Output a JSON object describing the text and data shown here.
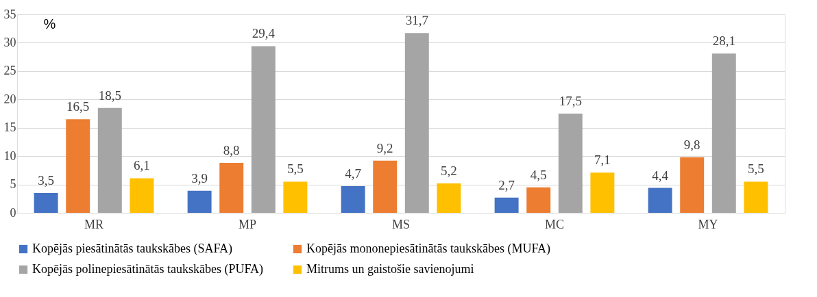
{
  "chart_data": {
    "type": "bar",
    "ylabel": "%",
    "categories": [
      "MR",
      "MP",
      "MS",
      "MC",
      "MY"
    ],
    "series": [
      {
        "name": "Kopējās piesātinātās taukskābes (SAFA)",
        "color": "#4472c4",
        "values": [
          3.5,
          3.9,
          4.7,
          2.7,
          4.4
        ],
        "value_labels": [
          "3,5",
          "3,9",
          "4,7",
          "2,7",
          "4,4"
        ]
      },
      {
        "name": "Kopējās mononepiesātinātās taukskābes (MUFA)",
        "color": "#ed7d31",
        "values": [
          16.5,
          8.8,
          9.2,
          4.5,
          9.8
        ],
        "value_labels": [
          "16,5",
          "8,8",
          "9,2",
          "4,5",
          "9,8"
        ]
      },
      {
        "name": "Kopējās polinepiesātinātās taukskābes (PUFA)",
        "color": "#a5a5a5",
        "values": [
          18.5,
          29.4,
          31.7,
          17.5,
          28.1
        ],
        "value_labels": [
          "18,5",
          "29,4",
          "31,7",
          "17,5",
          "28,1"
        ]
      },
      {
        "name": "Mitrums un gaistošie savienojumi",
        "color": "#ffc000",
        "values": [
          6.1,
          5.5,
          5.2,
          7.1,
          5.5
        ],
        "value_labels": [
          "6,1",
          "5,5",
          "5,2",
          "7,1",
          "5,5"
        ]
      }
    ],
    "ylim": [
      0,
      35
    ],
    "yticks": [
      0,
      5,
      10,
      15,
      20,
      25,
      30,
      35
    ],
    "grid": "y",
    "legend": "bottom"
  }
}
